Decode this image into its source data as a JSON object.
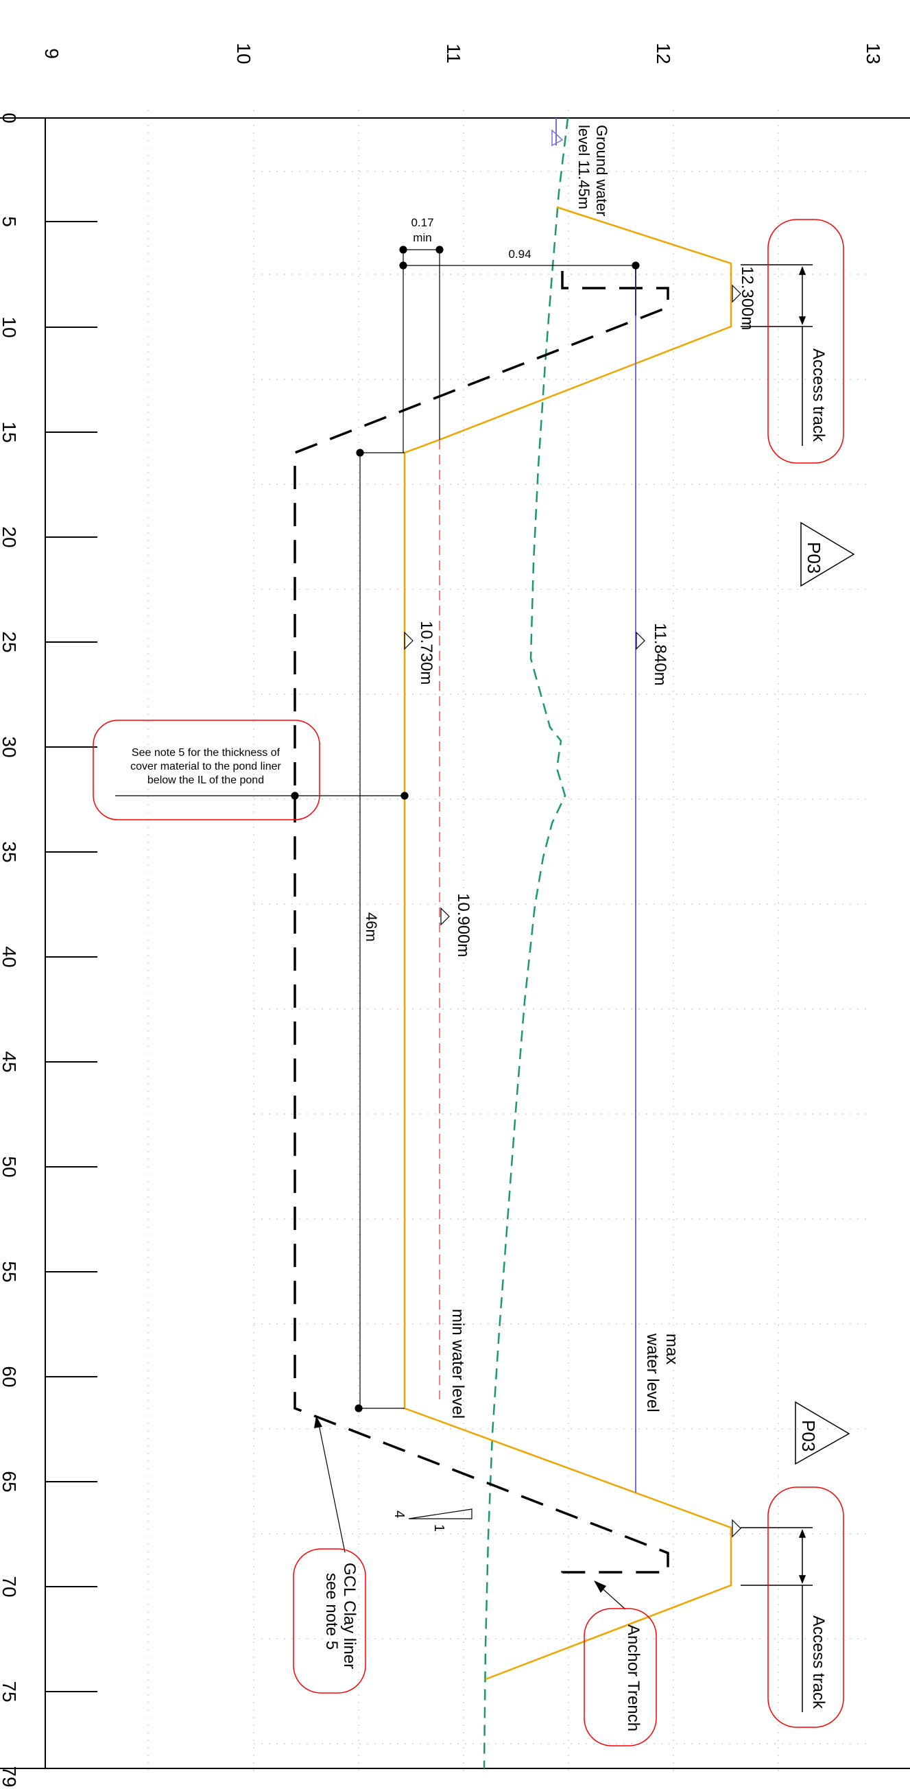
{
  "axes": {
    "elevation_ticks": [
      "9",
      "10",
      "11",
      "12",
      "13"
    ],
    "chainage_ticks": [
      "0",
      "5",
      "10",
      "15",
      "20",
      "25",
      "30",
      "35",
      "40",
      "45",
      "50",
      "55",
      "60",
      "65",
      "70",
      "75",
      "79"
    ]
  },
  "labels": {
    "ground_water_line1": "Ground water",
    "ground_water_line2": "level 11.45m",
    "access_track_top": "Access track",
    "access_track_bottom": "Access track",
    "level_12300": "12.300m",
    "level_11840": "11.840m",
    "level_10730": "10.730m",
    "level_10900": "10.900m",
    "dim_017": "0.17",
    "dim_min": "min",
    "dim_094": "0.94",
    "dim_46m": "46m",
    "max_water_1": "max",
    "max_water_2": "water level",
    "min_water": "min water level",
    "note5_1": "See note 5 for the thickness of",
    "note5_2": "cover material to the pond liner",
    "note5_3": "below the IL of the pond",
    "gcl_1": "GCL Clay liner",
    "gcl_2": "see note 5",
    "anchor_trench": "Anchor Trench",
    "slope_4": "4",
    "slope_1": "1",
    "rev_top": "P03",
    "rev_bottom": "P03"
  },
  "colors": {
    "pond_outline": "#f0a500",
    "liner": "#000000",
    "groundwater": "#1a9a6a",
    "max_water": "#7070e0",
    "min_water": "#f08080",
    "cloud": "#ff0000",
    "grid": "#bbbbbb"
  }
}
